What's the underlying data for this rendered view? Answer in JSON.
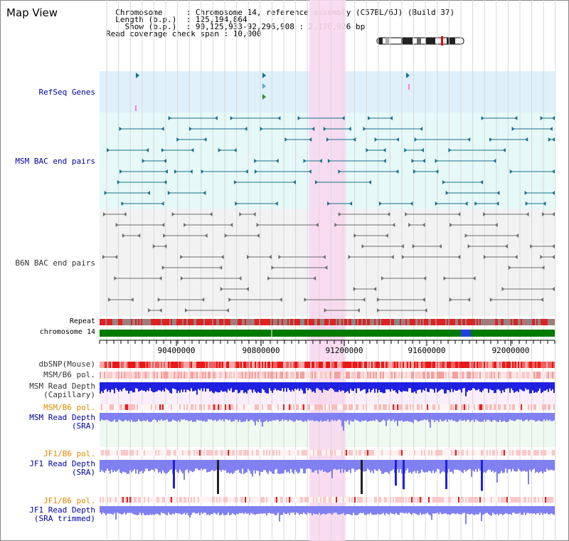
{
  "header": {
    "title": "Map View",
    "info_lines": [
      "  Chromosome     : Chromosome 14, reference assembly (C57BL/6J) (Build 37)",
      "  Length (b.p.)  : 125,194,864",
      "    Show (b.p.)  : 90,125,933-92,296,908 : 2,170,976 bp",
      "Read coverage check span : 10,000"
    ]
  },
  "tracks": {
    "refseq": "RefSeq Genes",
    "msm_bac": "MSM BAC end pairs",
    "b6n_bac": "B6N BAC end pairs",
    "repeat": "Repeat",
    "chromosome": "chromosome 14",
    "dbsnp": "dbSNP(Mouse)",
    "msm_b6_pol_1": "MSM/B6 pol.",
    "msm_depth_cap_1": "MSM Read Depth",
    "msm_depth_cap_2": "(Capillary)",
    "msm_b6_pol_2": "MSM/B6 pol.",
    "msm_depth_sra_1": "MSM Read Depth",
    "msm_depth_sra_2": "(SRA)",
    "jf1_b6_pol_1": "JF1/B6 pol.",
    "jf1_depth_sra_1": "JF1 Read Depth",
    "jf1_depth_sra_2": "(SRA)",
    "jf1_b6_pol_2": "JF1/B6 pol.",
    "jf1_depth_trim_1": "JF1 Read Depth",
    "jf1_depth_trim_2": "(SRA trimmed)"
  },
  "axis": {
    "ticks": [
      "90400000",
      "90800000",
      "91200000",
      "91600000",
      "92000000"
    ]
  },
  "colors": {
    "track_blue_bg": "#dff0fa",
    "bac_msm_bg": "#e6f8f8",
    "bac_b6n_bg": "#f2f2f2",
    "highlight": "#f8d8ef",
    "msm_feature": "#1a6f8a",
    "b6n_feature": "#6e6e6e",
    "chromosome_bar": "#007a00",
    "repeat_red": "#dd2222",
    "depth_blue": "#2020e0",
    "depth_light": "#8080f0",
    "label_blue": "#0000a8",
    "label_orange": "#e08a00"
  }
}
